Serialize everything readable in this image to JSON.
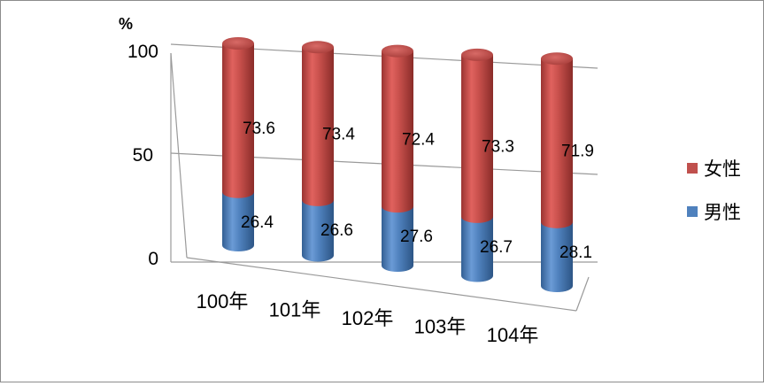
{
  "chart_data": {
    "type": "bar",
    "stacked": true,
    "shape": "3d-cylinder",
    "unit": "%",
    "categories": [
      "100年",
      "101年",
      "102年",
      "103年",
      "104年"
    ],
    "series": [
      {
        "name": "男性",
        "values": [
          26.4,
          26.6,
          27.6,
          26.7,
          28.1
        ],
        "color": "#4f81bd"
      },
      {
        "name": "女性",
        "values": [
          73.6,
          73.4,
          72.4,
          73.3,
          71.9
        ],
        "color": "#c0504d"
      }
    ],
    "yticks": [
      0,
      50,
      100
    ],
    "ylim": [
      0,
      100
    ],
    "grid": true,
    "legend": "right",
    "legend_order": [
      "女性",
      "男性"
    ]
  }
}
